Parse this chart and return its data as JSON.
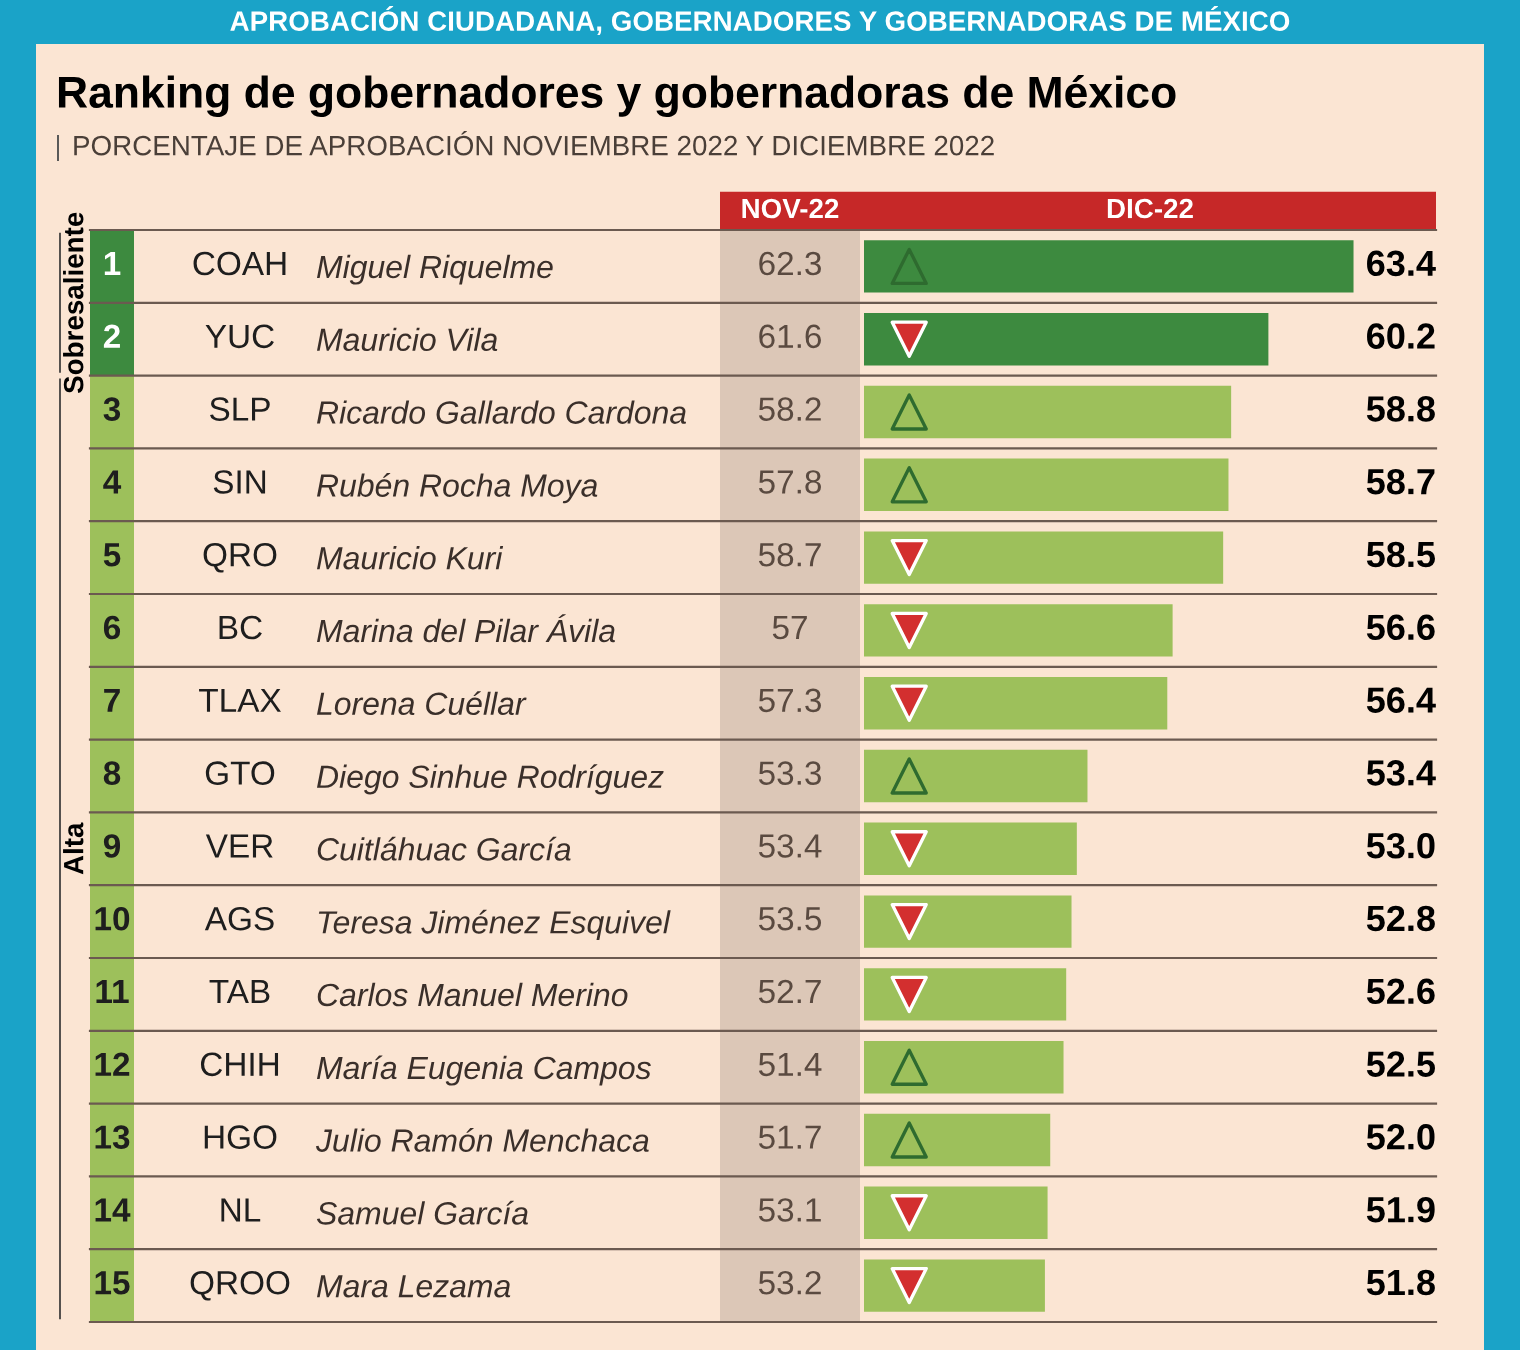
{
  "chart_data": {
    "type": "bar",
    "orientation": "horizontal",
    "title": "Ranking de gobernadores y gobernadoras de México",
    "subtitle": "PORCENTAJE DE APROBACIÓN NOVIEMBRE 2022 Y DICIEMBRE 2022",
    "xlabel": "DIC-22",
    "categories": [
      "Miguel Riquelme",
      "Mauricio Vila",
      "Ricardo Gallardo Cardona",
      "Rubén Rocha Moya",
      "Mauricio Kuri",
      "Marina del Pilar Ávila",
      "Lorena Cuéllar",
      "Diego Sinhue Rodríguez",
      "Cuitláhuac García",
      "Teresa Jiménez Esquivel",
      "Carlos Manuel Merino",
      "María Eugenia Campos",
      "Julio Ramón Menchaca",
      "Samuel García",
      "Mara Lezama"
    ],
    "values": [
      63.4,
      60.2,
      58.8,
      58.7,
      58.5,
      56.6,
      56.4,
      53.4,
      53.0,
      52.8,
      52.6,
      52.5,
      52.0,
      51.9,
      51.8
    ],
    "value_labels": [
      "63.4",
      "60.2",
      "58.8",
      "58.7",
      "58.5",
      "56.6",
      "56.4",
      "53.4",
      "53.0",
      "52.8",
      "52.6",
      "52.5",
      "52.0",
      "51.9",
      "51.8"
    ],
    "colors": [
      "#3d8a3f",
      "#3d8a3f",
      "#9dc05b",
      "#9dc05b",
      "#9dc05b",
      "#9dc05b",
      "#9dc05b",
      "#9dc05b",
      "#9dc05b",
      "#9dc05b",
      "#9dc05b",
      "#9dc05b",
      "#9dc05b",
      "#9dc05b",
      "#9dc05b"
    ],
    "xlim": [
      45,
      66.5
    ],
    "annotations": [
      "APROBACIÓN CIUDADANA, GOBERNADORES Y GOBERNADORAS DE MÉXICO",
      "NOV-22",
      "Sobresaliente",
      "Alta",
      "1",
      "COAH",
      "62.3",
      "2",
      "YUC",
      "61.6",
      "3",
      "SLP",
      "58.2",
      "4",
      "SIN",
      "57.8",
      "5",
      "QRO",
      "58.7",
      "6",
      "BC",
      "57",
      "7",
      "TLAX",
      "57.3",
      "8",
      "GTO",
      "53.3",
      "9",
      "VER",
      "53.4",
      "10",
      "AGS",
      "53.5",
      "11",
      "TAB",
      "52.7",
      "12",
      "CHIH",
      "51.4",
      "13",
      "HGO",
      "51.7",
      "14",
      "NL",
      "53.1",
      "15",
      "QROO",
      "53.2"
    ]
  }
}
